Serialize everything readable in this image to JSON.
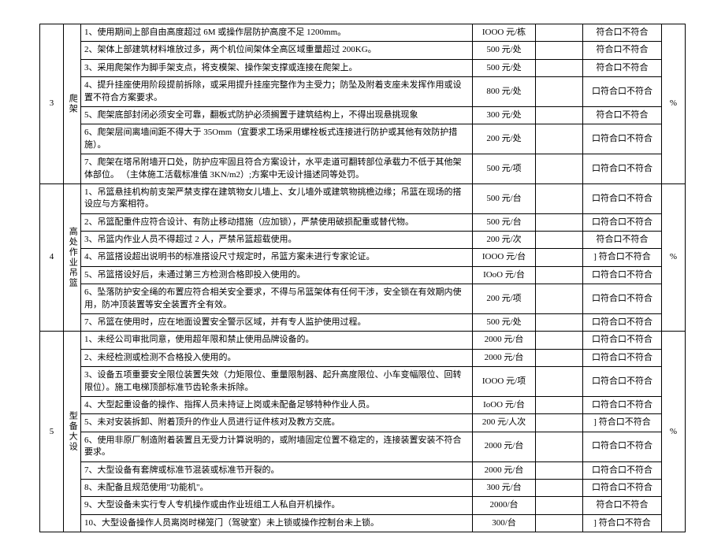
{
  "checkbox_compliant_label": "符合口不符合",
  "checkbox_box_compliant_label": "口符合口不符合",
  "checkbox_bracket_label": "] 符合口不符合",
  "percent_label": "%",
  "sections": [
    {
      "num": "3",
      "category": "爬架",
      "rows": [
        {
          "desc": "1、使用期间上部自由高度超过 6M 或操作层防护高度不足 1200mm。",
          "price": "IOOO 元/栋",
          "check": "符合口不符合"
        },
        {
          "desc": "2、架体上部建筑材料堆放过多，两个机位间架体全高区域重量超过 200KG。",
          "price": "500 元/处",
          "check": "符合口不符合"
        },
        {
          "desc": "3、采用爬架作为脚手架支点，将支模架、操作架支撑或连接在爬架上。",
          "price": "500 元/处",
          "check": "符合口不符合"
        },
        {
          "desc": "4、提升挂座使用阶段提前拆除，或采用提升挂座完整作为主受力；防坠及附着支座未发挥作用或设置不符合方案要求。",
          "price": "800 元/处",
          "check": "口符合口不符合"
        },
        {
          "desc": "5、爬架底部封闭必须安全可靠，翻板式防护必须搁置于建筑结构上，不得出现悬挑现象",
          "price": "300 元/处",
          "check": "符合口不符合"
        },
        {
          "desc": "6、爬架层间离墙间距不得大于 35Omm（宜要求工场采用螺栓板式连接进行防护或其他有效防护措施）。",
          "price": "200 元/处",
          "check": "口符合口不符合"
        },
        {
          "desc": "7、爬架在塔吊附墙开口处，防护应牢固且符合方案设计，水平走道可翻转部位承载力不低于其他架体部位。      （主体施工活载标准值 3KN/m2）;方案中无设计描述同等处罚。",
          "price": "500 元/项",
          "check": "口符合口不符合"
        }
      ]
    },
    {
      "num": "4",
      "category": "高处作业吊篮",
      "rows": [
        {
          "desc": "1、吊篮悬挂机构前支架严禁支撑在建筑物女儿墙上、女儿墙外或建筑物挑檐边缘；吊篮在现场的搭设应与方案相符。",
          "price": "500 元/台",
          "check": "口符合口不符合"
        },
        {
          "desc": "2、吊篮配重件应符合设计、有防止移动措施（应加锁），严禁使用破损配重或替代物。",
          "price": "500 元/台",
          "check": "口符合口不符合"
        },
        {
          "desc": "3、吊篮内作业人员不得超过 2 人，严禁吊篮超载使用。",
          "price": "200 元/次",
          "check": "符合口不符合"
        },
        {
          "desc": "4、吊篮搭设超出说明书的标准搭设尺寸规定时，吊篮方案未进行专家论证。",
          "price": "IOOO 元/台",
          "check": "] 符合口不符合"
        },
        {
          "desc": "5、吊篮搭设好后，未通过第三方检测合格即投入使用的。",
          "price": "IOoO 元/台",
          "check": "口符合口不符合"
        },
        {
          "desc": "6、坠落防护安全绳的布置应符合相关安全要求，不得与吊篮架体有任何干涉，安全锁在有效期内使用，防冲顶装置等安全装置齐全有效。",
          "price": "200 元/项",
          "check": "口符合口不符合"
        },
        {
          "desc": "7、吊篮在使用时，应在地面设置安全警示区域，并有专人监护使用过程。",
          "price": "500 元/处",
          "check": "口符合口不符合"
        }
      ]
    },
    {
      "num": "5",
      "category": "型备大设",
      "rows": [
        {
          "desc": "1、未经公司审批同意，使用超年限和禁止使用品牌设备的。",
          "price": "2000 元/台",
          "check": "口符合口不符合"
        },
        {
          "desc": "2、未经检测或检测不合格投入使用的。",
          "price": "2000 元/台",
          "check": "口符合口不符合"
        },
        {
          "desc": "3、设备五项重要安全限位装置失效（力矩限位、重量限制器、起升高度限位、小车变幅限位、回转限位）。施工电梯顶部标准节齿轮条未拆除。",
          "price": "IOOO 元/项",
          "check": "口符合口不符合"
        },
        {
          "desc": "4、大型起重设备的操作、指挥人员未持证上岗或未配备足够特种作业人员。",
          "price": "IoOO 元/台",
          "check": "口符合口不符合"
        },
        {
          "desc": "5、未对安装拆卸、附着顶升的作业人员进行证件核对及教方交底。",
          "price": "200 元/人次",
          "check": "] 符合口不符合"
        },
        {
          "desc": "6、使用非原厂制造附着装置且无受力计算说明的，或附墙固定位置不稳定的，连接装置安装不符合要求。",
          "price": "2000 元/台",
          "check": "口符合口不符合"
        },
        {
          "desc": "7、大型设备有套牌或标准节混装或标准节开裂的。",
          "price": "2000 元/台",
          "check": "口符合口不符合"
        },
        {
          "desc": "8、未配备且规范使用\"功能机\"。",
          "price": "300 元/台",
          "check": "口符合口不符合"
        },
        {
          "desc": "9、大型设备未实行专人专机操作或由作业班组工人私自开机操作。",
          "price": "2000/台",
          "check": "符合口不符合"
        },
        {
          "desc": "10、大型设备操作人员离岗时梯笼门（驾驶室）未上锁或操作控制台未上锁。",
          "price": "300/台",
          "check": "] 符合口不符合"
        }
      ]
    }
  ]
}
